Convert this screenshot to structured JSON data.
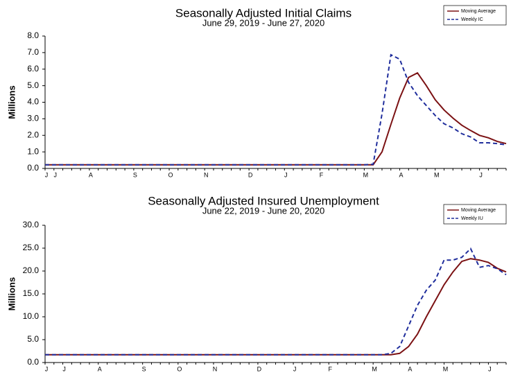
{
  "chart_data": [
    {
      "type": "line",
      "title": "Seasonally Adjusted Initial Claims",
      "subtitle": "June 29, 2019 - June 27, 2020",
      "y_label": "Millions",
      "legend": "upper right",
      "categories": [
        "J",
        "J",
        null,
        null,
        null,
        "A",
        null,
        null,
        null,
        null,
        "S",
        null,
        null,
        null,
        "O",
        null,
        null,
        null,
        "N",
        null,
        null,
        null,
        null,
        "D",
        null,
        null,
        null,
        "J",
        null,
        null,
        null,
        "F",
        null,
        null,
        null,
        null,
        "M",
        null,
        null,
        null,
        "A",
        null,
        null,
        null,
        "M",
        null,
        null,
        null,
        null,
        "J",
        null,
        null,
        null
      ],
      "series": [
        {
          "name": "Moving Average",
          "color": "#7b1113",
          "dash": false,
          "values": [
            0.22,
            0.22,
            0.22,
            0.22,
            0.22,
            0.22,
            0.22,
            0.22,
            0.22,
            0.22,
            0.22,
            0.22,
            0.22,
            0.22,
            0.22,
            0.22,
            0.22,
            0.22,
            0.22,
            0.22,
            0.22,
            0.22,
            0.22,
            0.22,
            0.22,
            0.22,
            0.22,
            0.22,
            0.22,
            0.22,
            0.22,
            0.22,
            0.22,
            0.22,
            0.22,
            0.22,
            0.22,
            0.22,
            1.0,
            2.66,
            4.25,
            5.5,
            5.77,
            5.0,
            4.15,
            3.53,
            3.04,
            2.61,
            2.29,
            2.0,
            1.85,
            1.63,
            1.5
          ]
        },
        {
          "name": "Weekly IC",
          "color": "#1f2d9c",
          "dash": true,
          "values": [
            0.22,
            0.22,
            0.22,
            0.22,
            0.22,
            0.22,
            0.22,
            0.22,
            0.22,
            0.22,
            0.22,
            0.22,
            0.22,
            0.22,
            0.22,
            0.22,
            0.22,
            0.22,
            0.22,
            0.22,
            0.22,
            0.22,
            0.22,
            0.22,
            0.22,
            0.22,
            0.22,
            0.22,
            0.22,
            0.22,
            0.22,
            0.22,
            0.22,
            0.22,
            0.22,
            0.22,
            0.22,
            0.25,
            3.3,
            6.87,
            6.6,
            5.2,
            4.4,
            3.8,
            3.2,
            2.7,
            2.45,
            2.1,
            1.9,
            1.55,
            1.55,
            1.5,
            1.43
          ]
        }
      ],
      "ylim": [
        0,
        8
      ],
      "yticks": [
        {
          "value": 0,
          "label": "0.0"
        },
        {
          "value": 1,
          "label": "1.0"
        },
        {
          "value": 2,
          "label": "2.0"
        },
        {
          "value": 3,
          "label": "3.0"
        },
        {
          "value": 4,
          "label": "4.0"
        },
        {
          "value": 5,
          "label": "5.0"
        },
        {
          "value": 6,
          "label": "6.0"
        },
        {
          "value": 7,
          "label": "7.0"
        },
        {
          "value": 8,
          "label": "8.0"
        }
      ]
    },
    {
      "type": "line",
      "title": "Seasonally Adjusted Insured Unemployment",
      "subtitle": "June 22, 2019 - June 20, 2020",
      "y_label": "Millions",
      "legend": "upper right",
      "categories": [
        "J",
        null,
        "J",
        null,
        null,
        null,
        "A",
        null,
        null,
        null,
        null,
        "S",
        null,
        null,
        null,
        "O",
        null,
        null,
        null,
        "N",
        null,
        null,
        null,
        null,
        "D",
        null,
        null,
        null,
        "J",
        null,
        null,
        null,
        "F",
        null,
        null,
        null,
        null,
        "M",
        null,
        null,
        null,
        "A",
        null,
        null,
        null,
        "M",
        null,
        null,
        null,
        null,
        "J",
        null,
        null
      ],
      "series": [
        {
          "name": "Moving Average",
          "color": "#7b1113",
          "dash": false,
          "values": [
            1.7,
            1.7,
            1.7,
            1.7,
            1.7,
            1.7,
            1.7,
            1.7,
            1.7,
            1.7,
            1.7,
            1.7,
            1.7,
            1.7,
            1.7,
            1.7,
            1.7,
            1.7,
            1.7,
            1.7,
            1.7,
            1.7,
            1.7,
            1.7,
            1.7,
            1.7,
            1.7,
            1.7,
            1.7,
            1.7,
            1.7,
            1.7,
            1.7,
            1.7,
            1.7,
            1.7,
            1.7,
            1.7,
            1.7,
            1.7,
            2.0,
            3.5,
            6.2,
            10.0,
            13.5,
            17.0,
            19.8,
            22.1,
            22.7,
            22.4,
            21.9,
            20.6,
            19.8
          ]
        },
        {
          "name": "Weekly IU",
          "color": "#1f2d9c",
          "dash": true,
          "values": [
            1.7,
            1.7,
            1.7,
            1.7,
            1.7,
            1.7,
            1.7,
            1.7,
            1.7,
            1.7,
            1.7,
            1.7,
            1.7,
            1.7,
            1.7,
            1.7,
            1.7,
            1.7,
            1.7,
            1.7,
            1.7,
            1.7,
            1.7,
            1.7,
            1.7,
            1.7,
            1.7,
            1.7,
            1.7,
            1.7,
            1.7,
            1.7,
            1.7,
            1.7,
            1.7,
            1.7,
            1.7,
            1.7,
            1.7,
            2.0,
            3.5,
            8.0,
            12.5,
            15.8,
            18.0,
            22.4,
            22.4,
            23.0,
            24.9,
            20.8,
            21.2,
            20.5,
            19.2
          ]
        }
      ],
      "ylim": [
        0,
        30
      ],
      "yticks": [
        {
          "value": 0,
          "label": "0.0"
        },
        {
          "value": 5,
          "label": "5.0"
        },
        {
          "value": 10,
          "label": "10.0"
        },
        {
          "value": 15,
          "label": "15.0"
        },
        {
          "value": 20,
          "label": "20.0"
        },
        {
          "value": 25,
          "label": "25.0"
        },
        {
          "value": 30,
          "label": "30.0"
        }
      ]
    }
  ]
}
